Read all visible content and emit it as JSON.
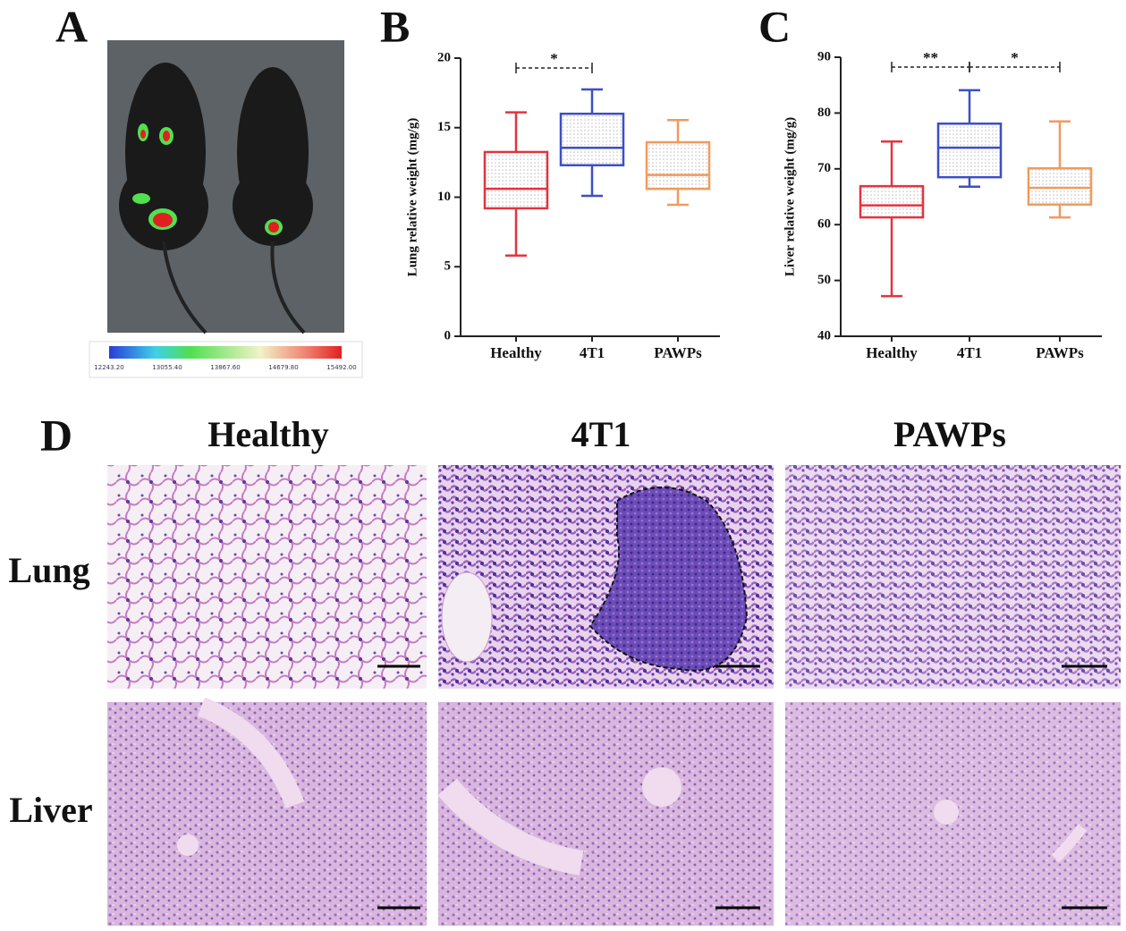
{
  "panel_labels": [
    "A",
    "B",
    "C",
    "D"
  ],
  "colorbar": {
    "ticks": [
      "12243.20",
      "13055.40",
      "13867.60",
      "14679.80",
      "15492.00"
    ]
  },
  "chart_data": [
    {
      "type": "box",
      "ylabel": "Lung relative weight (mg/g)",
      "categories": [
        "Healthy",
        "4T1",
        "PAWPs"
      ],
      "colors": [
        "#e2343f",
        "#3c4fc6",
        "#f19a5c"
      ],
      "min": [
        5.8,
        10.1,
        9.45
      ],
      "q1": [
        9.2,
        12.3,
        10.6
      ],
      "median": [
        10.6,
        13.55,
        11.6
      ],
      "q3": [
        13.25,
        16.0,
        13.95
      ],
      "max": [
        16.1,
        17.75,
        15.55
      ],
      "ylim": [
        0,
        20
      ],
      "yticks": [
        0,
        5,
        10,
        15,
        20
      ],
      "annotations": [
        {
          "label": "*",
          "from": "Healthy",
          "to": "4T1"
        }
      ]
    },
    {
      "type": "box",
      "ylabel": "Liver relative weight (mg/g)",
      "categories": [
        "Healthy",
        "4T1",
        "PAWPs"
      ],
      "colors": [
        "#e2343f",
        "#3c4fc6",
        "#f19a5c"
      ],
      "min": [
        47.2,
        66.8,
        61.3
      ],
      "q1": [
        61.3,
        68.5,
        63.6
      ],
      "median": [
        63.45,
        73.8,
        66.6
      ],
      "q3": [
        66.9,
        78.1,
        70.1
      ],
      "max": [
        74.9,
        84.1,
        78.5
      ],
      "ylim": [
        40,
        90
      ],
      "yticks": [
        40,
        50,
        60,
        70,
        80,
        90
      ],
      "annotations": [
        {
          "label": "**",
          "from": "Healthy",
          "to": "4T1"
        },
        {
          "label": "*",
          "from": "4T1",
          "to": "PAWPs"
        }
      ]
    }
  ],
  "histology": {
    "columns": [
      "Healthy",
      "4T1",
      "PAWPs"
    ],
    "rows": [
      "Lung",
      "Liver"
    ]
  }
}
